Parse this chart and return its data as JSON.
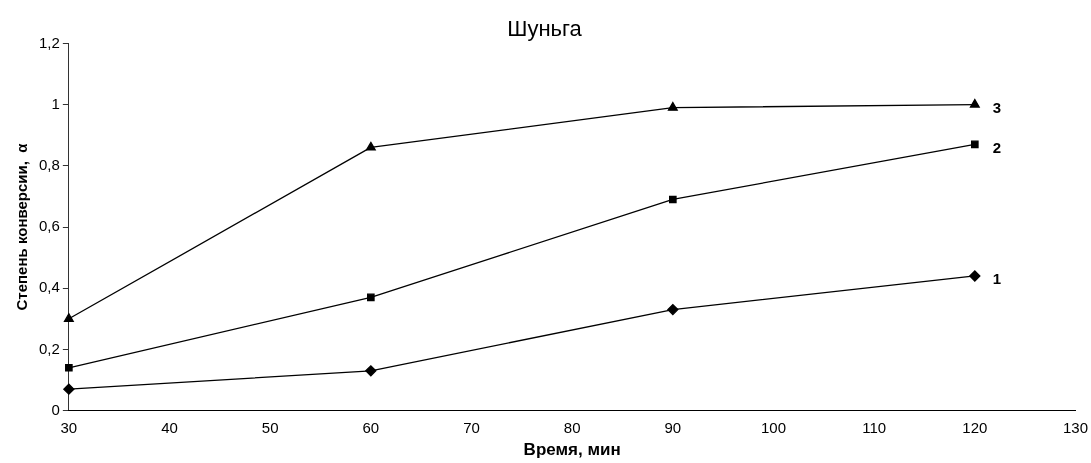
{
  "chart_data": {
    "type": "line",
    "title": "Шуньга",
    "xlabel": "Время, мин",
    "ylabel": "Степень конверсии,  α",
    "x": [
      30,
      60,
      90,
      120
    ],
    "series": [
      {
        "name": "1",
        "color": "#000000",
        "marker": "diamond",
        "values": [
          0.07,
          0.13,
          0.33,
          0.44
        ]
      },
      {
        "name": "2",
        "color": "#000000",
        "marker": "square",
        "values": [
          0.14,
          0.37,
          0.69,
          0.87
        ]
      },
      {
        "name": "3",
        "color": "#000000",
        "marker": "triangle",
        "values": [
          0.3,
          0.86,
          0.99,
          1.0
        ]
      }
    ],
    "xlim": [
      30,
      130
    ],
    "xticks": [
      30,
      40,
      50,
      60,
      70,
      80,
      90,
      100,
      110,
      120,
      130
    ],
    "ylim": [
      0,
      1.2
    ],
    "yticks": [
      0,
      {
        "value": 0.2,
        "label": "0,2"
      },
      {
        "value": 0.4,
        "label": "0,4"
      },
      {
        "value": 0.6,
        "label": "0,6"
      },
      {
        "value": 0.8,
        "label": "0,8"
      },
      1,
      {
        "value": 1.2,
        "label": "1,2"
      }
    ],
    "grid": false,
    "legend": false,
    "line_style": "solid"
  }
}
